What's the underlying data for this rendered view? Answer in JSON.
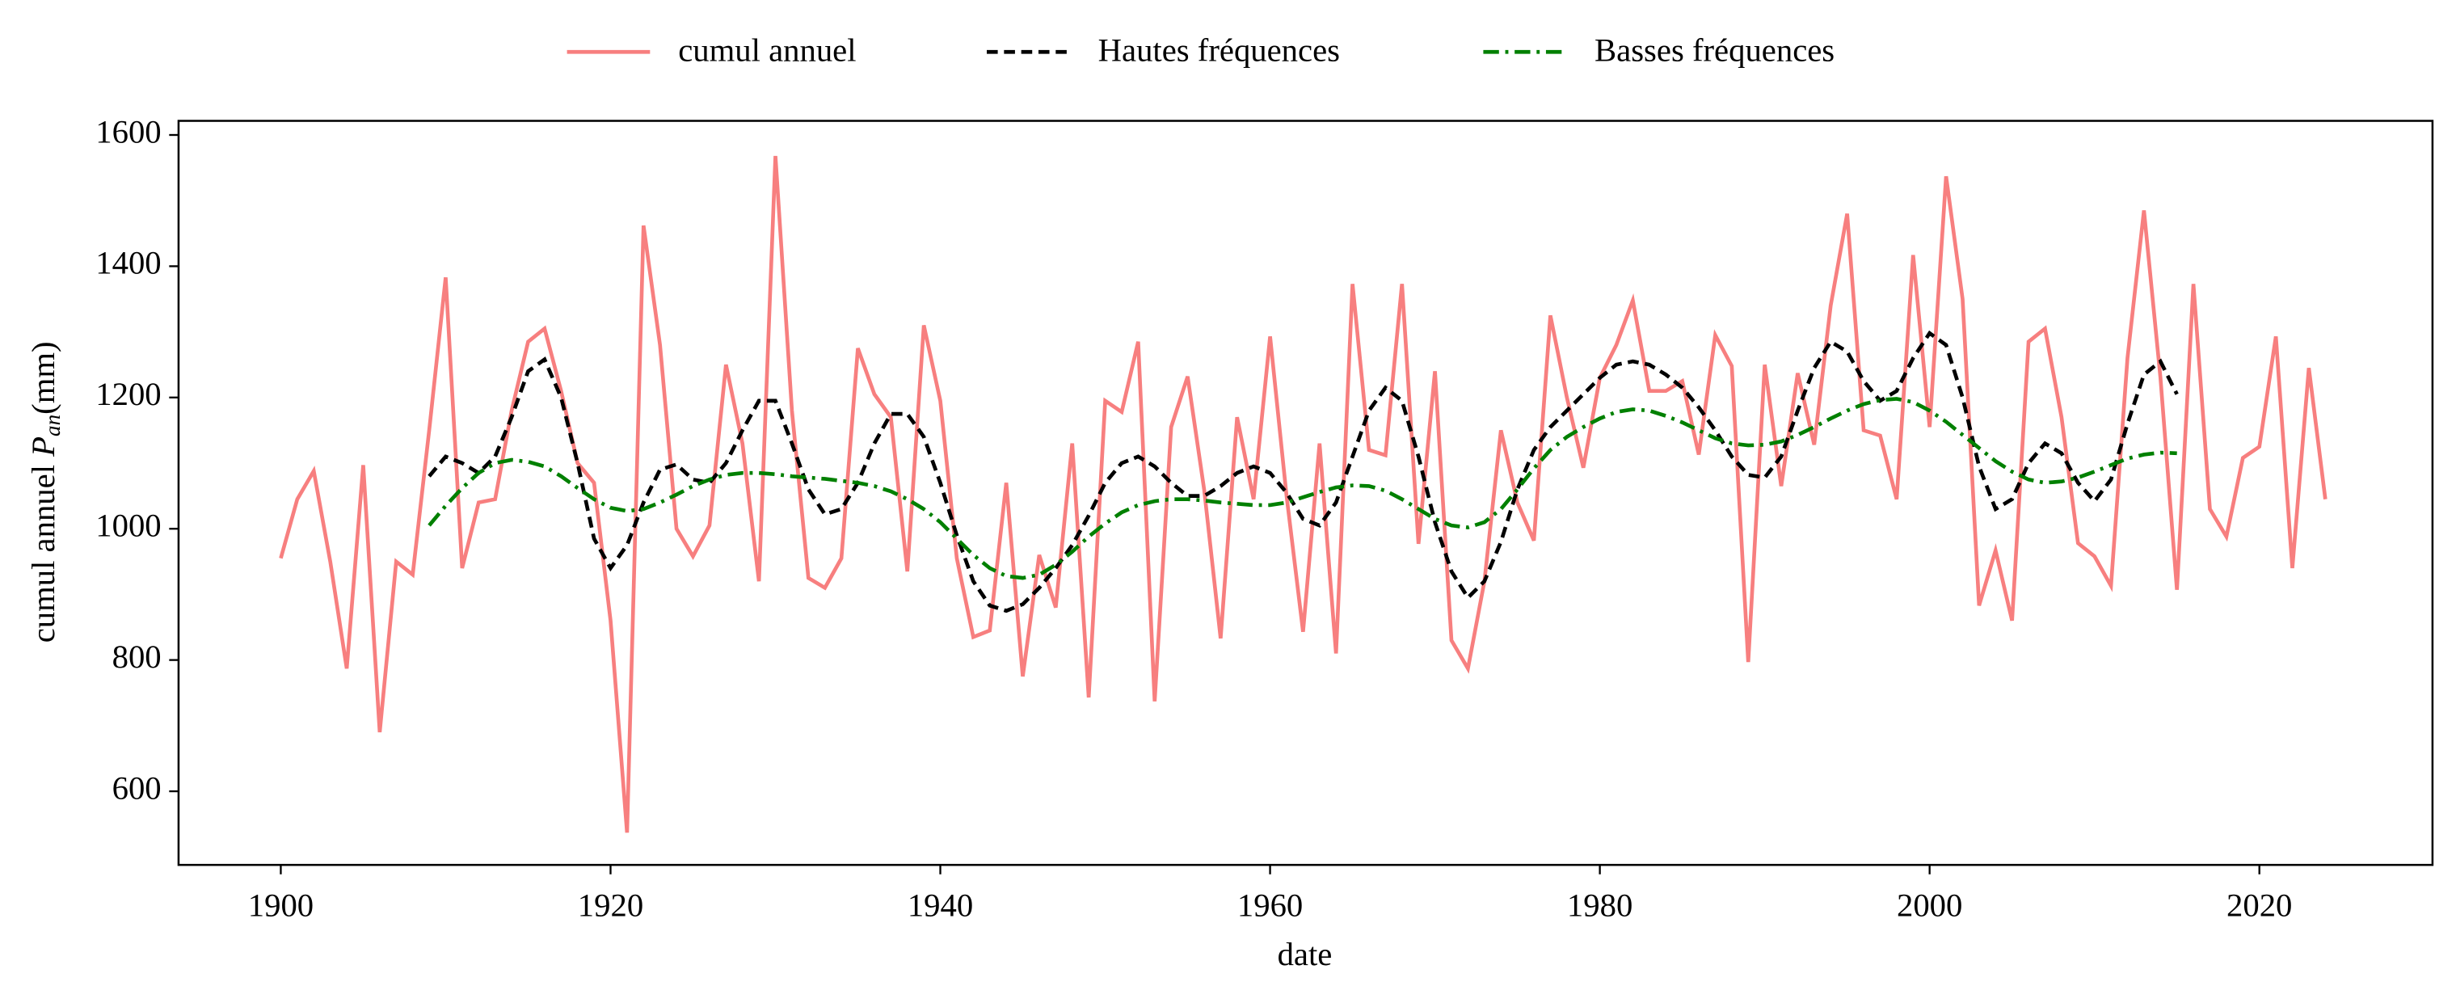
{
  "chart_data": {
    "type": "line",
    "xlabel": "date",
    "ylabel": {
      "text": "cumul annuel",
      "symbol": "P",
      "subscript": "an",
      "unit": "(mm)"
    },
    "legend": "top-center",
    "x": [
      1900,
      1901,
      1902,
      1903,
      1904,
      1905,
      1906,
      1907,
      1908,
      1909,
      1910,
      1911,
      1912,
      1913,
      1914,
      1915,
      1916,
      1917,
      1918,
      1919,
      1920,
      1921,
      1922,
      1923,
      1924,
      1925,
      1926,
      1927,
      1928,
      1929,
      1930,
      1931,
      1932,
      1933,
      1934,
      1935,
      1936,
      1937,
      1938,
      1939,
      1940,
      1941,
      1942,
      1943,
      1944,
      1945,
      1946,
      1947,
      1948,
      1949,
      1950,
      1951,
      1952,
      1953,
      1954,
      1955,
      1956,
      1957,
      1958,
      1959,
      1960,
      1961,
      1962,
      1963,
      1964,
      1965,
      1966,
      1967,
      1968,
      1969,
      1970,
      1971,
      1972,
      1973,
      1974,
      1975,
      1976,
      1977,
      1978,
      1979,
      1980,
      1981,
      1982,
      1983,
      1984,
      1985,
      1986,
      1987,
      1988,
      1989,
      1990,
      1991,
      1992,
      1993,
      1994,
      1995,
      1996,
      1997,
      1998,
      1999,
      2000,
      2001,
      2002,
      2003,
      2004,
      2005,
      2006,
      2007,
      2008,
      2009,
      2010,
      2011,
      2012,
      2013,
      2014,
      2015,
      2016,
      2017,
      2018,
      2019,
      2020,
      2021,
      2022,
      2023,
      2024
    ],
    "series": [
      {
        "name": "cumul annuel",
        "color": "#f77f7f",
        "style": "solid",
        "values": [
          955,
          1045,
          1088,
          950,
          787,
          1097,
          690,
          950,
          930,
          1150,
          1383,
          940,
          1040,
          1045,
          1180,
          1285,
          1305,
          1210,
          1100,
          1070,
          860,
          537,
          1462,
          1280,
          1000,
          958,
          1005,
          1250,
          1130,
          920,
          1568,
          1180,
          925,
          910,
          955,
          1275,
          1205,
          1170,
          935,
          1310,
          1195,
          955,
          835,
          845,
          1070,
          775,
          960,
          880,
          1130,
          743,
          1195,
          1178,
          1285,
          737,
          1155,
          1232,
          1060,
          833,
          1170,
          1045,
          1293,
          1050,
          843,
          1130,
          810,
          1373,
          1120,
          1112,
          1373,
          977,
          1240,
          830,
          787,
          920,
          1150,
          1040,
          982,
          1325,
          1200,
          1093,
          1230,
          1280,
          1348,
          1210,
          1210,
          1225,
          1113,
          1295,
          1248,
          797,
          1250,
          1065,
          1237,
          1128,
          1340,
          1480,
          1150,
          1142,
          1045,
          1417,
          1155,
          1537,
          1350,
          883,
          967,
          860,
          1285,
          1305,
          1170,
          978,
          958,
          913,
          1260,
          1485,
          1230,
          907,
          1373,
          1030,
          988,
          1108,
          1125,
          1293,
          940,
          1245,
          1045
        ]
      },
      {
        "name": "Hautes fréquences",
        "color": "#000000",
        "style": "dashed",
        "values": [
          null,
          null,
          null,
          null,
          null,
          null,
          null,
          null,
          null,
          1080,
          1110,
          1100,
          1085,
          1110,
          1170,
          1240,
          1258,
          1200,
          1100,
          985,
          940,
          975,
          1040,
          1090,
          1098,
          1075,
          1070,
          1100,
          1150,
          1195,
          1195,
          1130,
          1060,
          1022,
          1030,
          1070,
          1130,
          1175,
          1175,
          1140,
          1070,
          990,
          920,
          883,
          875,
          885,
          910,
          940,
          975,
          1020,
          1070,
          1100,
          1110,
          1095,
          1070,
          1050,
          1050,
          1065,
          1085,
          1095,
          1085,
          1055,
          1015,
          1005,
          1040,
          1110,
          1180,
          1215,
          1195,
          1110,
          1010,
          935,
          895,
          920,
          980,
          1060,
          1120,
          1155,
          1180,
          1205,
          1230,
          1250,
          1255,
          1250,
          1235,
          1215,
          1185,
          1150,
          1110,
          1082,
          1078,
          1110,
          1180,
          1245,
          1285,
          1270,
          1225,
          1195,
          1210,
          1260,
          1298,
          1280,
          1200,
          1095,
          1030,
          1045,
          1100,
          1130,
          1115,
          1070,
          1042,
          1075,
          1160,
          1235,
          1255,
          1205,
          null,
          null,
          null,
          null,
          null,
          null,
          null,
          null,
          null
        ]
      },
      {
        "name": "Basses fréquences",
        "color": "#008000",
        "style": "dashdot",
        "values": [
          null,
          null,
          null,
          null,
          null,
          null,
          null,
          null,
          null,
          1005,
          1035,
          1062,
          1085,
          1100,
          1105,
          1102,
          1095,
          1080,
          1062,
          1045,
          1032,
          1027,
          1030,
          1040,
          1052,
          1065,
          1075,
          1082,
          1085,
          1085,
          1083,
          1080,
          1078,
          1076,
          1073,
          1070,
          1065,
          1057,
          1045,
          1030,
          1010,
          985,
          960,
          940,
          928,
          925,
          930,
          945,
          965,
          988,
          1008,
          1025,
          1036,
          1042,
          1045,
          1045,
          1043,
          1040,
          1038,
          1036,
          1036,
          1040,
          1048,
          1056,
          1063,
          1066,
          1065,
          1058,
          1045,
          1030,
          1015,
          1005,
          1002,
          1010,
          1030,
          1060,
          1092,
          1120,
          1140,
          1155,
          1168,
          1178,
          1182,
          1180,
          1172,
          1162,
          1150,
          1138,
          1130,
          1127,
          1128,
          1133,
          1143,
          1155,
          1168,
          1180,
          1190,
          1196,
          1198,
          1193,
          1180,
          1163,
          1143,
          1123,
          1103,
          1087,
          1075,
          1070,
          1072,
          1078,
          1087,
          1097,
          1107,
          1113,
          1116,
          1115,
          null,
          null,
          null,
          null,
          null,
          null,
          null,
          null,
          null
        ]
      }
    ],
    "xlim": [
      1893.8,
      2030.5
    ],
    "xticks": [
      1900,
      1920,
      1940,
      1960,
      1980,
      2000,
      2020
    ],
    "ylim": [
      487.8,
      1621.5
    ],
    "yticks": [
      600,
      800,
      1000,
      1200,
      1400,
      1600
    ]
  }
}
